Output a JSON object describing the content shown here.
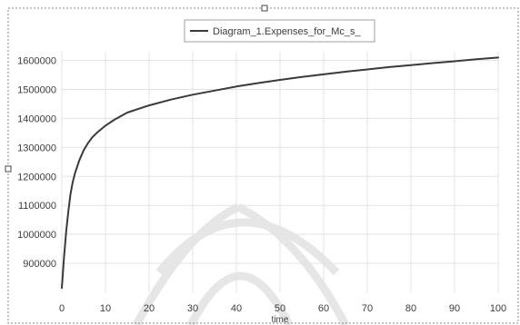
{
  "colors": {
    "background": "#ffffff",
    "series_line": "#3a3a3a",
    "grid": "#e3e3e3",
    "axis_text": "#3c3c3c",
    "watermark": "#e6e6e6",
    "selection_border": "#888888"
  },
  "chart_data": {
    "type": "line",
    "title": "",
    "xlabel": "time",
    "ylabel": "",
    "xlim": [
      0,
      100
    ],
    "ylim": [
      800000,
      1630000
    ],
    "x_ticks": [
      0,
      10,
      20,
      30,
      40,
      50,
      60,
      70,
      80,
      90,
      100
    ],
    "y_ticks": [
      900000,
      1000000,
      1100000,
      1200000,
      1300000,
      1400000,
      1500000,
      1600000
    ],
    "grid": true,
    "legend_position": "top-center",
    "series": [
      {
        "name": "Diagram_1.Expenses_for_Mc_s_",
        "color": "#3a3a3a",
        "x": [
          0,
          0.5,
          1,
          1.5,
          2,
          2.5,
          3,
          4,
          5,
          6,
          7,
          8,
          10,
          12,
          15,
          20,
          25,
          30,
          35,
          40,
          45,
          50,
          55,
          60,
          65,
          70,
          75,
          80,
          85,
          90,
          95,
          100
        ],
        "y": [
          815000,
          920000,
          1010000,
          1080000,
          1140000,
          1180000,
          1210000,
          1255000,
          1290000,
          1315000,
          1335000,
          1350000,
          1375000,
          1395000,
          1420000,
          1445000,
          1465000,
          1482000,
          1496000,
          1510000,
          1522000,
          1533000,
          1543000,
          1552000,
          1561000,
          1569000,
          1577000,
          1584000,
          1591000,
          1597000,
          1604000,
          1610000
        ]
      }
    ]
  }
}
